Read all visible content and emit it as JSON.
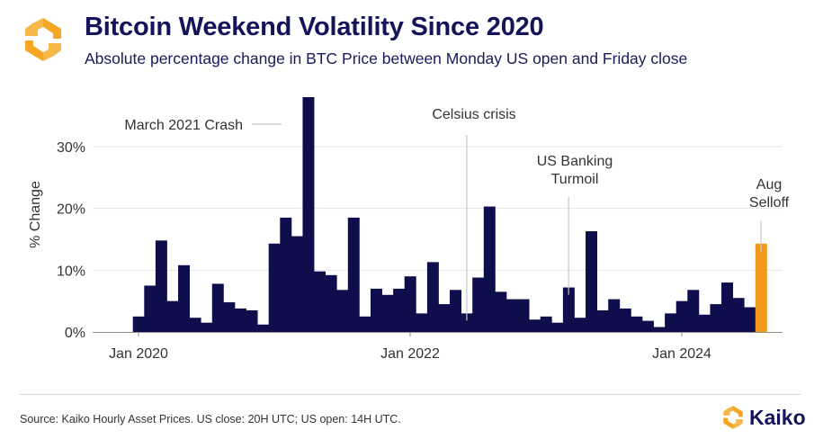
{
  "header": {
    "title": "Bitcoin Weekend Volatility Since 2020",
    "subtitle": "Absolute percentage change in BTC Price between Monday US open and Friday close",
    "logo_icon": "kaiko-logo-icon"
  },
  "footer": {
    "source": "Source: Kaiko Hourly Asset Prices. US close: 20H UTC; US open: 14H UTC.",
    "brand": "Kaiko"
  },
  "colors": {
    "bar": "#0e0e4d",
    "highlight": "#f29a1c",
    "text": "#333333",
    "grid": "#e6e6e6",
    "axis": "#8c8c8c"
  },
  "chart_data": {
    "type": "bar",
    "ylabel": "% Change",
    "ylim": [
      0,
      38
    ],
    "yticks": [
      {
        "value": 0,
        "label": "0%"
      },
      {
        "value": 10,
        "label": "10%"
      },
      {
        "value": 20,
        "label": "20%"
      },
      {
        "value": 30,
        "label": "30%"
      }
    ],
    "xticks": [
      {
        "value": "2020-01",
        "label": "Jan 2020"
      },
      {
        "value": "2022-01",
        "label": "Jan 2022"
      },
      {
        "value": "2024-01",
        "label": "Jan 2024"
      }
    ],
    "xrange": [
      "2019-11",
      "2024-11"
    ],
    "grid": true,
    "bar_values_note": "",
    "series": [
      {
        "dates": [
          "2020-01",
          "2020-02",
          "2020-03",
          "2020-04",
          "2020-05",
          "2020-06",
          "2020-07",
          "2020-08",
          "2020-09",
          "2020-10",
          "2020-11",
          "2020-12",
          "2021-01",
          "2021-02",
          "2021-03",
          "2021-04",
          "2021-05",
          "2021-06",
          "2021-07",
          "2021-08",
          "2021-09",
          "2021-10",
          "2021-11",
          "2021-12",
          "2022-01",
          "2022-02",
          "2022-03",
          "2022-04",
          "2022-05",
          "2022-06",
          "2022-07",
          "2022-08",
          "2022-09",
          "2022-10",
          "2022-11",
          "2022-12",
          "2023-01",
          "2023-02",
          "2023-03",
          "2023-04",
          "2023-05",
          "2023-06",
          "2023-07",
          "2023-08",
          "2023-09",
          "2023-10",
          "2023-11",
          "2023-12",
          "2024-01",
          "2024-02",
          "2024-03",
          "2024-04",
          "2024-05",
          "2024-06",
          "2024-07",
          "2024-08"
        ],
        "values": [
          2.5,
          7.5,
          14.8,
          5.0,
          10.8,
          2.3,
          1.5,
          7.8,
          4.8,
          3.8,
          3.5,
          1.2,
          14.3,
          18.5,
          15.5,
          38.0,
          9.8,
          9.2,
          6.8,
          18.5,
          2.5,
          7.0,
          6.0,
          7.0,
          9.0,
          3.0,
          11.3,
          4.5,
          6.8,
          3.0,
          8.8,
          20.3,
          6.5,
          5.3,
          5.3,
          2.0,
          2.5,
          1.5,
          7.2,
          2.3,
          16.3,
          3.5,
          5.3,
          3.8,
          2.5,
          1.8,
          0.8,
          3.0,
          5.0,
          6.8,
          2.8,
          4.5,
          8.0,
          5.5,
          4.0,
          14.3
        ],
        "highlight_index": 55
      }
    ],
    "annotations": [
      {
        "label": "March 2021 Crash",
        "date": "2021-04"
      },
      {
        "label": "Celsius crisis",
        "date": "2022-06"
      },
      {
        "label": "US Banking Turmoil",
        "date": "2023-03"
      },
      {
        "label": "Aug Selloff",
        "date": "2024-08"
      }
    ]
  }
}
